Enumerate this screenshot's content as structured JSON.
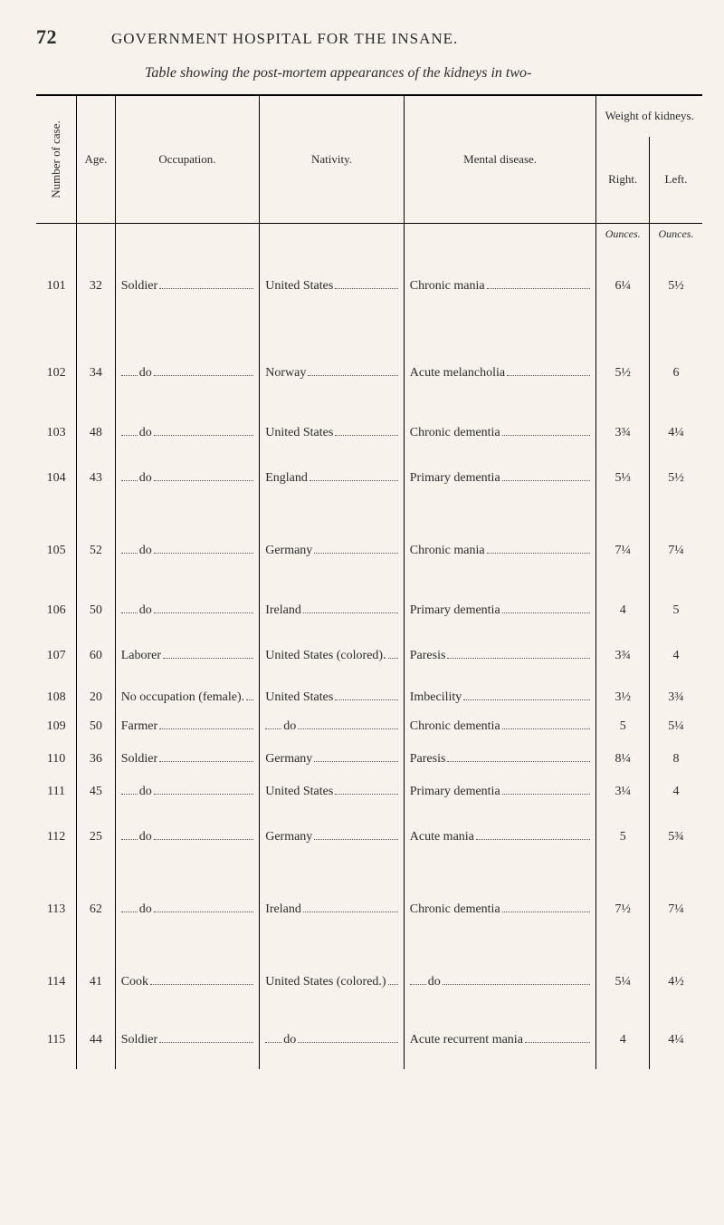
{
  "page_number": "72",
  "running_title": "GOVERNMENT HOSPITAL FOR THE INSANE.",
  "table_caption": "Table showing the post-mortem appearances of the kidneys in two-",
  "headers": {
    "number_of_case": "Number of case.",
    "age": "Age.",
    "occupation": "Occupation.",
    "nativity": "Nativity.",
    "mental_disease": "Mental disease.",
    "weight_caption": "Weight of kidneys.",
    "right": "Right.",
    "left": "Left.",
    "ounces_r": "Ounces.",
    "ounces_l": "Ounces."
  },
  "rows": [
    {
      "num": "101",
      "age": "32",
      "occ": "Soldier",
      "nat": "United States",
      "dis": "Chronic mania",
      "r": "6¼",
      "l": "5½",
      "cls": "big"
    },
    {
      "num": "102",
      "age": "34",
      "occ": "do",
      "nat": "Norway",
      "dis": "Acute melancholia",
      "r": "5½",
      "l": "6",
      "cls": "big"
    },
    {
      "num": "103",
      "age": "48",
      "occ": "do",
      "nat": "United States",
      "dis": "Chronic dementia",
      "r": "3¾",
      "l": "4¼",
      "cls": "sm"
    },
    {
      "num": "104",
      "age": "43",
      "occ": "do",
      "nat": "England",
      "dis": "Primary dementia",
      "r": "5⅓",
      "l": "5½",
      "cls": "med"
    },
    {
      "num": "105",
      "age": "52",
      "occ": "do",
      "nat": "Germany",
      "dis": "Chronic mania",
      "r": "7¼",
      "l": "7¼",
      "cls": "big"
    },
    {
      "num": "106",
      "age": "50",
      "occ": "do",
      "nat": "Ireland",
      "dis": "Primary dementia",
      "r": "4",
      "l": "5",
      "cls": "sm"
    },
    {
      "num": "107",
      "age": "60",
      "occ": "Laborer",
      "nat": "United States (colored).",
      "dis": "Paresis",
      "r": "3¾",
      "l": "4",
      "cls": "med"
    },
    {
      "num": "108",
      "age": "20",
      "occ": "No occupation (female).",
      "nat": "United States",
      "dis": "Imbecility",
      "r": "3½",
      "l": "3¾",
      "cls": "xs"
    },
    {
      "num": "109",
      "age": "50",
      "occ": "Farmer",
      "nat": "do",
      "dis": "Chronic dementia",
      "r": "5",
      "l": "5¼",
      "cls": "sm"
    },
    {
      "num": "110",
      "age": "36",
      "occ": "Soldier",
      "nat": "Germany",
      "dis": "Paresis",
      "r": "8¼",
      "l": "8",
      "cls": "sm"
    },
    {
      "num": "111",
      "age": "45",
      "occ": "do",
      "nat": "United States",
      "dis": "Primary dementia",
      "r": "3¼",
      "l": "4",
      "cls": "sm"
    },
    {
      "num": "112",
      "age": "25",
      "occ": "do",
      "nat": "Germany",
      "dis": "Acute mania",
      "r": "5",
      "l": "5¾",
      "cls": "med"
    },
    {
      "num": "113",
      "age": "62",
      "occ": "do",
      "nat": "Ireland",
      "dis": "Chronic dementia",
      "r": "7½",
      "l": "7¼",
      "cls": "big"
    },
    {
      "num": "114",
      "age": "41",
      "occ": "Cook",
      "nat": "United States (colored.)",
      "dis": "do",
      "r": "5¼",
      "l": "4½",
      "cls": "med"
    },
    {
      "num": "115",
      "age": "44",
      "occ": "Soldier",
      "nat": "do",
      "dis": "Acute recurrent mania",
      "r": "4",
      "l": "4¼",
      "cls": "med"
    }
  ]
}
